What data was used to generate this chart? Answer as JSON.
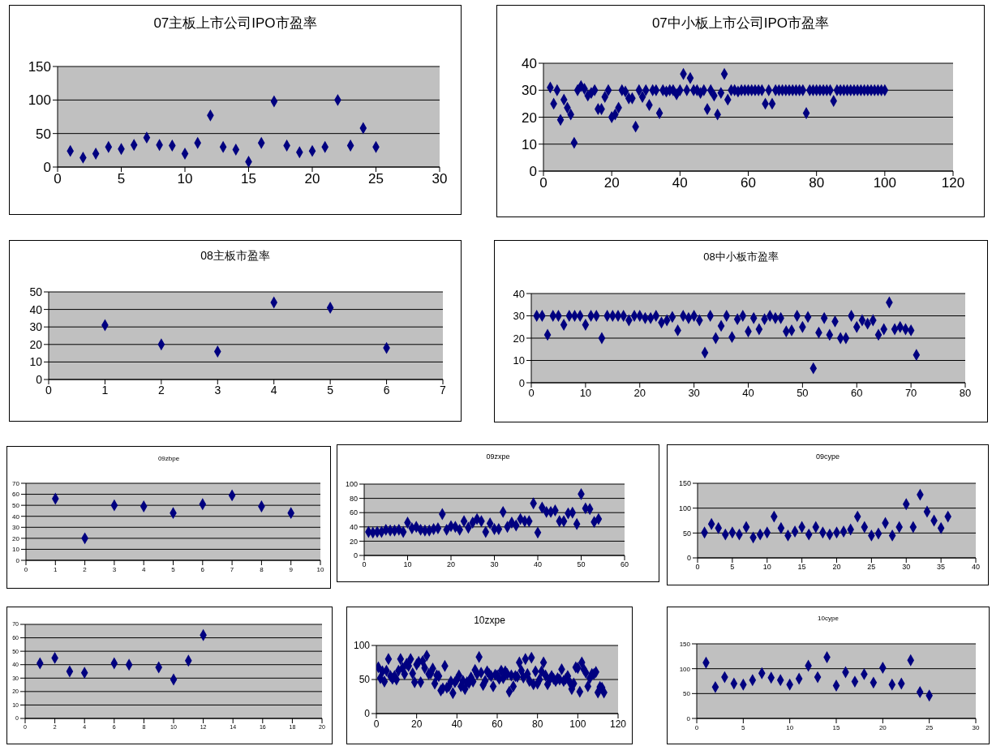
{
  "chart_data": [
    {
      "type": "scatter",
      "title": "07主板上市公司IPO市盈率",
      "color": "#000080",
      "marker": "diamond",
      "grid": "y",
      "xlim": [
        0,
        30
      ],
      "xticks": [
        0,
        5,
        10,
        15,
        20,
        25,
        30
      ],
      "ylim": [
        0,
        150
      ],
      "yticks": [
        0,
        50,
        100,
        150
      ],
      "x": [
        1,
        2,
        3,
        4,
        5,
        6,
        7,
        8,
        9,
        10,
        11,
        12,
        13,
        14,
        15,
        16,
        17,
        18,
        19,
        20,
        21,
        22,
        23,
        24,
        25
      ],
      "values": [
        24,
        14,
        20,
        30,
        27,
        33,
        44,
        33,
        32,
        20,
        36,
        77,
        30,
        26,
        8,
        36,
        98,
        32,
        22,
        24,
        30,
        100,
        32,
        58,
        30
      ]
    },
    {
      "type": "scatter",
      "title": "07中小板上市公司IPO市盈率",
      "color": "#000080",
      "marker": "diamond",
      "grid": "y",
      "xlim": [
        0,
        120
      ],
      "xticks": [
        0,
        20,
        40,
        60,
        80,
        100,
        120
      ],
      "ylim": [
        0,
        40
      ],
      "yticks": [
        0,
        10,
        20,
        30,
        40
      ],
      "x": [
        2,
        3,
        4,
        5,
        6,
        7,
        8,
        9,
        10,
        11,
        12,
        13,
        14,
        15,
        16,
        17,
        18,
        19,
        20,
        21,
        22,
        23,
        24,
        25,
        26,
        27,
        28,
        29,
        30,
        31,
        32,
        33,
        34,
        35,
        36,
        37,
        38,
        39,
        40,
        41,
        42,
        43,
        44,
        45,
        46,
        47,
        48,
        49,
        50,
        51,
        52,
        53,
        54,
        55,
        56,
        57,
        58,
        59,
        60,
        61,
        62,
        63,
        64,
        65,
        66,
        67,
        68,
        69,
        70,
        71,
        72,
        73,
        74,
        75,
        76,
        77,
        78,
        79,
        80,
        81,
        82,
        83,
        84,
        85,
        86,
        87,
        88,
        89,
        90,
        91,
        92,
        93,
        94,
        95,
        96,
        97,
        98,
        99,
        100
      ],
      "values": [
        31,
        25,
        30,
        19,
        26.5,
        23.5,
        21,
        10.5,
        30,
        31.5,
        30.5,
        28,
        29,
        30,
        23,
        23,
        27.5,
        30,
        20,
        21,
        23.5,
        30,
        29.5,
        27,
        27,
        16.5,
        30,
        27.5,
        30,
        24.5,
        30,
        30,
        21.5,
        30,
        29.5,
        30,
        30,
        28.5,
        30,
        36,
        30,
        34.5,
        30,
        30,
        29,
        30,
        23,
        30,
        28,
        21,
        29,
        36,
        26.5,
        30,
        30,
        29.5,
        30,
        30,
        30,
        30,
        30,
        30,
        30,
        25,
        30,
        25,
        30,
        30,
        30,
        30,
        30,
        30,
        30,
        30,
        30,
        21.5,
        30,
        30,
        30,
        30,
        30,
        30,
        30,
        26,
        30,
        30,
        30,
        30,
        30,
        30,
        30,
        30,
        30,
        30,
        30,
        30,
        30,
        30,
        30
      ]
    },
    {
      "type": "scatter",
      "title": "08主板市盈率",
      "color": "#000080",
      "marker": "diamond",
      "grid": "y",
      "xlim": [
        0,
        7
      ],
      "xticks": [
        0,
        1,
        2,
        3,
        4,
        5,
        6,
        7
      ],
      "ylim": [
        0,
        50
      ],
      "yticks": [
        0,
        10,
        20,
        30,
        40,
        50
      ],
      "x": [
        1,
        2,
        3,
        4,
        5,
        6
      ],
      "values": [
        31,
        20,
        16,
        44,
        41,
        18
      ]
    },
    {
      "type": "scatter",
      "title": "08中小板市盈率",
      "color": "#000080",
      "marker": "diamond",
      "grid": "y",
      "xlim": [
        0,
        80
      ],
      "xticks": [
        0,
        10,
        20,
        30,
        40,
        50,
        60,
        70,
        80
      ],
      "ylim": [
        0,
        40
      ],
      "yticks": [
        0,
        10,
        20,
        30,
        40
      ],
      "x": [
        1,
        2,
        3,
        4,
        5,
        6,
        7,
        8,
        9,
        10,
        11,
        12,
        13,
        14,
        15,
        16,
        17,
        18,
        19,
        20,
        21,
        22,
        23,
        24,
        25,
        26,
        27,
        28,
        29,
        30,
        31,
        32,
        33,
        34,
        35,
        36,
        37,
        38,
        39,
        40,
        41,
        42,
        43,
        44,
        45,
        46,
        47,
        48,
        49,
        50,
        51,
        52,
        53,
        54,
        55,
        56,
        57,
        58,
        59,
        60,
        61,
        62,
        63,
        64,
        65,
        66,
        67,
        68,
        69,
        70,
        71
      ],
      "values": [
        30,
        30,
        21.5,
        30,
        30,
        26,
        30,
        30,
        30,
        26,
        30,
        30,
        20,
        30,
        30,
        30,
        30,
        28,
        30,
        30,
        29,
        29,
        30,
        27,
        28,
        29.5,
        23.5,
        30,
        29,
        30,
        28,
        13.5,
        30,
        20,
        25.5,
        30,
        20.5,
        28.5,
        30,
        23,
        29,
        24,
        28.5,
        30,
        29,
        29,
        23,
        23.5,
        30,
        25,
        29.5,
        6.5,
        22.5,
        29,
        21.5,
        27.5,
        20,
        20,
        30,
        25,
        28,
        26.5,
        28,
        21.5,
        24,
        36,
        24,
        25,
        24,
        23.5,
        12.5
      ]
    },
    {
      "type": "scatter",
      "title": "09zbpe",
      "color": "#000080",
      "marker": "diamond",
      "grid": "y",
      "xlim": [
        0,
        10
      ],
      "xticks": [
        0,
        1,
        2,
        3,
        4,
        5,
        6,
        7,
        8,
        9,
        10
      ],
      "ylim": [
        0,
        70
      ],
      "yticks": [
        0,
        10,
        20,
        30,
        40,
        50,
        60,
        70
      ],
      "x": [
        1,
        2,
        3,
        4,
        5,
        6,
        7,
        8,
        9
      ],
      "values": [
        56,
        20,
        50,
        49,
        43,
        51,
        59,
        49,
        43
      ]
    },
    {
      "type": "scatter",
      "title": "09zxpe",
      "color": "#000080",
      "marker": "diamond",
      "grid": "y",
      "xlim": [
        0,
        60
      ],
      "xticks": [
        0,
        10,
        20,
        30,
        40,
        50,
        60
      ],
      "ylim": [
        0,
        100
      ],
      "yticks": [
        0,
        20,
        40,
        60,
        80,
        100
      ],
      "x": [
        1,
        2,
        3,
        4,
        5,
        6,
        7,
        8,
        9,
        10,
        11,
        12,
        13,
        14,
        15,
        16,
        17,
        18,
        19,
        20,
        21,
        22,
        23,
        24,
        25,
        26,
        27,
        28,
        29,
        30,
        31,
        32,
        33,
        34,
        35,
        36,
        37,
        38,
        39,
        40,
        41,
        42,
        43,
        44,
        45,
        46,
        47,
        48,
        49,
        50,
        51,
        52,
        53,
        54
      ],
      "values": [
        33,
        32,
        33,
        33,
        36,
        35,
        35,
        36,
        33,
        46,
        38,
        40,
        36,
        35,
        35,
        37,
        38,
        58,
        36,
        41,
        40,
        36,
        48,
        39,
        46,
        51,
        48,
        33,
        45,
        37,
        37,
        61,
        40,
        46,
        42,
        51,
        48,
        48,
        73,
        32,
        67,
        61,
        61,
        63,
        48,
        48,
        59,
        60,
        44,
        86,
        66,
        65,
        47,
        51
      ]
    },
    {
      "type": "scatter",
      "title": "09cype",
      "color": "#000080",
      "marker": "diamond",
      "grid": "y",
      "xlim": [
        0,
        40
      ],
      "xticks": [
        0,
        5,
        10,
        15,
        20,
        25,
        30,
        35,
        40
      ],
      "ylim": [
        0,
        150
      ],
      "yticks": [
        0,
        50,
        100,
        150
      ],
      "x": [
        1,
        2,
        3,
        4,
        5,
        6,
        7,
        8,
        9,
        10,
        11,
        12,
        13,
        14,
        15,
        16,
        17,
        18,
        19,
        20,
        21,
        22,
        23,
        24,
        25,
        26,
        27,
        28,
        29,
        30,
        31,
        32,
        33,
        34,
        35,
        36
      ],
      "values": [
        51,
        68,
        60,
        47,
        51,
        47,
        62,
        41,
        47,
        51,
        83,
        60,
        45,
        53,
        62,
        47,
        62,
        51,
        47,
        51,
        53,
        57,
        83,
        62,
        45,
        49,
        70,
        45,
        62,
        108,
        62,
        127,
        93,
        75,
        60,
        83
      ]
    },
    {
      "type": "scatter",
      "color": "#000080",
      "marker": "diamond",
      "grid": "y",
      "xlim": [
        0,
        20
      ],
      "xticks": [
        0,
        2,
        4,
        6,
        8,
        10,
        12,
        14,
        16,
        18,
        20
      ],
      "ylim": [
        0,
        70
      ],
      "yticks": [
        0,
        10,
        20,
        30,
        40,
        50,
        60,
        70
      ],
      "x": [
        1,
        2,
        3,
        4,
        6,
        7,
        9,
        10,
        11,
        12
      ],
      "values": [
        41,
        45,
        35,
        34,
        41,
        40,
        38,
        29,
        43,
        62
      ]
    },
    {
      "type": "scatter",
      "title": "10zxpe",
      "color": "#000080",
      "marker": "diamond",
      "grid": "y",
      "xlim": [
        0,
        120
      ],
      "xticks": [
        0,
        20,
        40,
        60,
        80,
        100,
        120
      ],
      "ylim": [
        0,
        100
      ],
      "yticks": [
        0,
        50,
        100
      ],
      "x": [
        1,
        2,
        3,
        4,
        5,
        6,
        7,
        8,
        9,
        10,
        11,
        12,
        13,
        14,
        15,
        16,
        17,
        18,
        19,
        20,
        21,
        22,
        23,
        24,
        25,
        26,
        27,
        28,
        29,
        30,
        31,
        32,
        33,
        34,
        35,
        36,
        37,
        38,
        39,
        40,
        41,
        42,
        43,
        44,
        45,
        46,
        47,
        48,
        49,
        50,
        51,
        52,
        53,
        54,
        55,
        56,
        57,
        58,
        59,
        60,
        61,
        62,
        63,
        64,
        65,
        66,
        67,
        68,
        69,
        70,
        71,
        72,
        73,
        74,
        75,
        76,
        77,
        78,
        79,
        80,
        81,
        82,
        83,
        84,
        85,
        86,
        87,
        88,
        89,
        90,
        91,
        92,
        93,
        94,
        95,
        96,
        97,
        98,
        99,
        100,
        101,
        102,
        103,
        104,
        105,
        106,
        107,
        108,
        109,
        110,
        111,
        112,
        113
      ],
      "values": [
        68,
        52,
        62,
        47,
        63,
        80,
        55,
        51,
        55,
        50,
        63,
        80,
        67,
        58,
        73,
        70,
        80,
        59,
        46,
        72,
        76,
        46,
        77,
        67,
        85,
        58,
        59,
        66,
        44,
        56,
        55,
        34,
        37,
        70,
        38,
        40,
        47,
        30,
        46,
        50,
        56,
        40,
        48,
        36,
        46,
        45,
        53,
        47,
        64,
        58,
        83,
        60,
        42,
        48,
        62,
        58,
        55,
        40,
        57,
        56,
        51,
        63,
        52,
        62,
        58,
        32,
        56,
        40,
        55,
        54,
        75,
        63,
        53,
        80,
        58,
        48,
        82,
        43,
        62,
        44,
        50,
        62,
        75,
        56,
        43,
        50,
        55,
        51,
        48,
        52,
        50,
        65,
        48,
        51,
        55,
        46,
        36,
        44,
        68,
        67,
        32,
        75,
        65,
        60,
        40,
        52,
        58,
        58,
        61,
        31,
        39,
        38,
        31
      ]
    },
    {
      "type": "scatter",
      "title": "10cype",
      "color": "#000080",
      "marker": "diamond",
      "grid": "y",
      "xlim": [
        0,
        30
      ],
      "xticks": [
        0,
        5,
        10,
        15,
        20,
        25,
        30
      ],
      "ylim": [
        0,
        150
      ],
      "yticks": [
        0,
        50,
        100,
        150
      ],
      "x": [
        1,
        2,
        3,
        4,
        5,
        6,
        7,
        8,
        9,
        10,
        11,
        12,
        13,
        14,
        15,
        16,
        17,
        18,
        19,
        20,
        21,
        22,
        23,
        24,
        25
      ],
      "values": [
        112,
        63,
        83,
        70,
        68,
        77,
        91,
        82,
        77,
        68,
        80,
        106,
        83,
        123,
        66,
        93,
        74,
        89,
        72,
        102,
        68,
        70,
        117,
        53,
        46
      ]
    }
  ]
}
